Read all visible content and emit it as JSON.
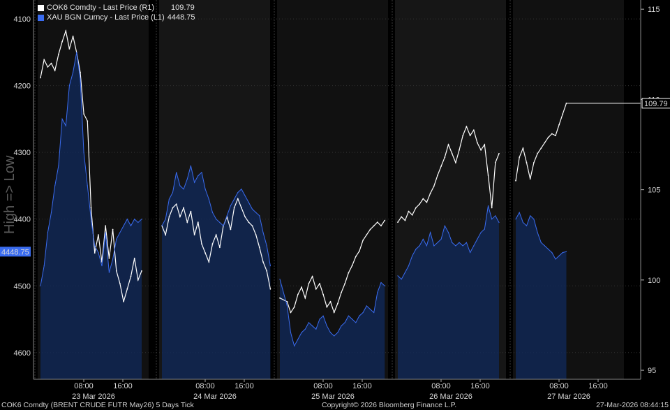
{
  "legend": [
    {
      "label": "COK6 Comdty - Last Price (R1)",
      "value": "109.79",
      "color": "#ffffff"
    },
    {
      "label": "XAU BGN Curncy - Last Price (L1)",
      "value": "4448.75",
      "color": "#3a6cf0"
    }
  ],
  "y_axis_label": "High => Low",
  "footer": {
    "left": "COK6 Comdty (BRENT CRUDE FUTR  May26) 5 Days Tick",
    "center": "Copyright© 2026 Bloomberg Finance L.P.",
    "right": "27-Mar-2026 08:44:15"
  },
  "chart_data": {
    "type": "line",
    "days": [
      "23 Mar 2026",
      "24 Mar 2026",
      "25 Mar 2026",
      "26 Mar 2026",
      "27 Mar 2026"
    ],
    "time_ticks": [
      "08:00",
      "16:00"
    ],
    "left_axis": {
      "ticks": [
        4100,
        4200,
        4300,
        4400,
        4500,
        4600
      ],
      "range": [
        4080,
        4640
      ],
      "inverted": true,
      "current_label": "4448.75"
    },
    "right_axis": {
      "ticks": [
        95,
        100,
        105,
        110,
        115
      ],
      "range": [
        94.5,
        115.2
      ],
      "current_label": "109.79"
    },
    "series": [
      {
        "name": "COK6 Comdty - Last Price (R1)",
        "axis": "right",
        "color": "#ffffff",
        "points": [
          [
            0.0,
            111.2
          ],
          [
            0.02,
            112.2
          ],
          [
            0.04,
            111.8
          ],
          [
            0.06,
            112.0
          ],
          [
            0.08,
            111.6
          ],
          [
            0.1,
            112.5
          ],
          [
            0.12,
            113.2
          ],
          [
            0.14,
            113.8
          ],
          [
            0.16,
            112.8
          ],
          [
            0.18,
            113.5
          ],
          [
            0.2,
            112.6
          ],
          [
            0.22,
            111.5
          ],
          [
            0.24,
            109.2
          ],
          [
            0.26,
            108.8
          ],
          [
            0.28,
            104.0
          ],
          [
            0.3,
            101.5
          ],
          [
            0.32,
            102.5
          ],
          [
            0.34,
            101.0
          ],
          [
            0.36,
            103.0
          ],
          [
            0.38,
            101.2
          ],
          [
            0.4,
            102.8
          ],
          [
            0.42,
            100.5
          ],
          [
            0.44,
            99.8
          ],
          [
            0.46,
            98.8
          ],
          [
            0.48,
            99.5
          ],
          [
            0.5,
            100.2
          ],
          [
            0.52,
            101.2
          ],
          [
            0.54,
            100.0
          ],
          [
            0.56,
            100.5
          ],
          [
            1.0,
            103.0
          ],
          [
            1.02,
            102.5
          ],
          [
            1.04,
            103.5
          ],
          [
            1.06,
            104.0
          ],
          [
            1.08,
            104.2
          ],
          [
            1.1,
            103.5
          ],
          [
            1.12,
            104.0
          ],
          [
            1.14,
            103.2
          ],
          [
            1.16,
            103.8
          ],
          [
            1.18,
            102.5
          ],
          [
            1.2,
            103.2
          ],
          [
            1.22,
            102.0
          ],
          [
            1.24,
            101.5
          ],
          [
            1.26,
            101.0
          ],
          [
            1.28,
            102.0
          ],
          [
            1.3,
            102.5
          ],
          [
            1.32,
            101.8
          ],
          [
            1.34,
            103.0
          ],
          [
            1.36,
            103.5
          ],
          [
            1.38,
            102.8
          ],
          [
            1.4,
            104.0
          ],
          [
            1.42,
            104.5
          ],
          [
            1.44,
            104.0
          ],
          [
            1.46,
            103.5
          ],
          [
            1.48,
            103.2
          ],
          [
            1.5,
            103.0
          ],
          [
            1.52,
            102.5
          ],
          [
            1.54,
            101.8
          ],
          [
            1.56,
            101.0
          ],
          [
            1.58,
            100.5
          ],
          [
            1.6,
            99.5
          ],
          [
            2.0,
            99.0
          ],
          [
            2.04,
            98.8
          ],
          [
            2.06,
            98.2
          ],
          [
            2.08,
            98.5
          ],
          [
            2.1,
            99.2
          ],
          [
            2.12,
            99.6
          ],
          [
            2.14,
            99.0
          ],
          [
            2.16,
            99.8
          ],
          [
            2.18,
            100.2
          ],
          [
            2.2,
            99.5
          ],
          [
            2.22,
            99.8
          ],
          [
            2.24,
            99.2
          ],
          [
            2.26,
            98.5
          ],
          [
            2.28,
            98.8
          ],
          [
            2.3,
            98.2
          ],
          [
            2.32,
            98.7
          ],
          [
            2.34,
            99.3
          ],
          [
            2.36,
            99.8
          ],
          [
            2.38,
            100.4
          ],
          [
            2.4,
            100.8
          ],
          [
            2.42,
            101.3
          ],
          [
            2.44,
            101.6
          ],
          [
            2.46,
            102.2
          ],
          [
            2.48,
            102.5
          ],
          [
            2.5,
            102.8
          ],
          [
            2.52,
            103.0
          ],
          [
            2.54,
            103.2
          ],
          [
            2.56,
            103.0
          ],
          [
            2.58,
            103.3
          ],
          [
            3.0,
            103.2
          ],
          [
            3.02,
            103.5
          ],
          [
            3.04,
            103.3
          ],
          [
            3.06,
            103.8
          ],
          [
            3.08,
            103.6
          ],
          [
            3.1,
            104.0
          ],
          [
            3.12,
            104.2
          ],
          [
            3.14,
            104.5
          ],
          [
            3.16,
            104.3
          ],
          [
            3.18,
            104.8
          ],
          [
            3.2,
            105.2
          ],
          [
            3.22,
            105.8
          ],
          [
            3.24,
            106.3
          ],
          [
            3.26,
            106.8
          ],
          [
            3.28,
            107.5
          ],
          [
            3.3,
            107.0
          ],
          [
            3.32,
            106.5
          ],
          [
            3.34,
            107.2
          ],
          [
            3.36,
            108.0
          ],
          [
            3.38,
            108.5
          ],
          [
            3.4,
            108.0
          ],
          [
            3.42,
            108.3
          ],
          [
            3.44,
            107.6
          ],
          [
            3.46,
            107.2
          ],
          [
            3.48,
            107.5
          ],
          [
            3.5,
            105.8
          ],
          [
            3.52,
            104.0
          ],
          [
            3.54,
            106.5
          ],
          [
            3.56,
            107.0
          ],
          [
            4.0,
            105.5
          ],
          [
            4.02,
            106.8
          ],
          [
            4.04,
            107.3
          ],
          [
            4.06,
            106.5
          ],
          [
            4.08,
            105.6
          ],
          [
            4.1,
            106.5
          ],
          [
            4.12,
            107.0
          ],
          [
            4.14,
            107.3
          ],
          [
            4.16,
            107.6
          ],
          [
            4.18,
            107.9
          ],
          [
            4.2,
            108.1
          ],
          [
            4.22,
            108.0
          ],
          [
            4.24,
            108.6
          ],
          [
            4.26,
            109.2
          ],
          [
            4.28,
            109.79
          ]
        ]
      },
      {
        "name": "XAU BGN Curncy - Last Price (L1)",
        "axis": "left",
        "color": "#3a6cf0",
        "points": [
          [
            0.0,
            4500
          ],
          [
            0.02,
            4470
          ],
          [
            0.04,
            4420
          ],
          [
            0.06,
            4390
          ],
          [
            0.08,
            4350
          ],
          [
            0.1,
            4320
          ],
          [
            0.12,
            4250
          ],
          [
            0.14,
            4260
          ],
          [
            0.16,
            4200
          ],
          [
            0.18,
            4180
          ],
          [
            0.2,
            4150
          ],
          [
            0.22,
            4190
          ],
          [
            0.24,
            4300
          ],
          [
            0.26,
            4350
          ],
          [
            0.28,
            4400
          ],
          [
            0.3,
            4440
          ],
          [
            0.32,
            4450
          ],
          [
            0.34,
            4470
          ],
          [
            0.36,
            4420
          ],
          [
            0.38,
            4480
          ],
          [
            0.4,
            4460
          ],
          [
            0.42,
            4430
          ],
          [
            0.44,
            4420
          ],
          [
            0.46,
            4410
          ],
          [
            0.48,
            4400
          ],
          [
            0.5,
            4410
          ],
          [
            0.52,
            4400
          ],
          [
            0.54,
            4405
          ],
          [
            0.56,
            4400
          ],
          [
            1.0,
            4410
          ],
          [
            1.02,
            4400
          ],
          [
            1.04,
            4370
          ],
          [
            1.06,
            4360
          ],
          [
            1.08,
            4330
          ],
          [
            1.1,
            4350
          ],
          [
            1.12,
            4355
          ],
          [
            1.14,
            4340
          ],
          [
            1.16,
            4320
          ],
          [
            1.18,
            4345
          ],
          [
            1.2,
            4335
          ],
          [
            1.22,
            4330
          ],
          [
            1.24,
            4355
          ],
          [
            1.26,
            4370
          ],
          [
            1.28,
            4390
          ],
          [
            1.3,
            4400
          ],
          [
            1.32,
            4405
          ],
          [
            1.34,
            4410
          ],
          [
            1.36,
            4395
          ],
          [
            1.38,
            4380
          ],
          [
            1.4,
            4370
          ],
          [
            1.42,
            4360
          ],
          [
            1.44,
            4355
          ],
          [
            1.46,
            4365
          ],
          [
            1.48,
            4375
          ],
          [
            1.5,
            4385
          ],
          [
            1.52,
            4390
          ],
          [
            1.54,
            4395
          ],
          [
            1.56,
            4420
          ],
          [
            1.58,
            4440
          ],
          [
            1.6,
            4470
          ],
          [
            2.0,
            4490
          ],
          [
            2.04,
            4530
          ],
          [
            2.06,
            4570
          ],
          [
            2.08,
            4590
          ],
          [
            2.1,
            4580
          ],
          [
            2.12,
            4570
          ],
          [
            2.14,
            4565
          ],
          [
            2.16,
            4555
          ],
          [
            2.18,
            4560
          ],
          [
            2.2,
            4565
          ],
          [
            2.22,
            4550
          ],
          [
            2.24,
            4545
          ],
          [
            2.26,
            4560
          ],
          [
            2.28,
            4570
          ],
          [
            2.3,
            4575
          ],
          [
            2.32,
            4570
          ],
          [
            2.34,
            4560
          ],
          [
            2.36,
            4555
          ],
          [
            2.38,
            4545
          ],
          [
            2.4,
            4550
          ],
          [
            2.42,
            4555
          ],
          [
            2.44,
            4545
          ],
          [
            2.46,
            4540
          ],
          [
            2.48,
            4530
          ],
          [
            2.5,
            4535
          ],
          [
            2.52,
            4540
          ],
          [
            2.54,
            4510
          ],
          [
            2.56,
            4495
          ],
          [
            2.58,
            4500
          ],
          [
            3.0,
            4485
          ],
          [
            3.02,
            4490
          ],
          [
            3.04,
            4480
          ],
          [
            3.06,
            4470
          ],
          [
            3.08,
            4455
          ],
          [
            3.1,
            4445
          ],
          [
            3.12,
            4440
          ],
          [
            3.14,
            4430
          ],
          [
            3.16,
            4440
          ],
          [
            3.18,
            4420
          ],
          [
            3.2,
            4440
          ],
          [
            3.22,
            4435
          ],
          [
            3.24,
            4430
          ],
          [
            3.26,
            4410
          ],
          [
            3.28,
            4420
          ],
          [
            3.3,
            4435
          ],
          [
            3.32,
            4440
          ],
          [
            3.34,
            4435
          ],
          [
            3.36,
            4440
          ],
          [
            3.38,
            4435
          ],
          [
            3.4,
            4450
          ],
          [
            3.42,
            4440
          ],
          [
            3.44,
            4430
          ],
          [
            3.46,
            4420
          ],
          [
            3.48,
            4415
          ],
          [
            3.5,
            4380
          ],
          [
            3.52,
            4400
          ],
          [
            3.54,
            4395
          ],
          [
            3.56,
            4405
          ],
          [
            4.0,
            4400
          ],
          [
            4.02,
            4390
          ],
          [
            4.04,
            4405
          ],
          [
            4.06,
            4410
          ],
          [
            4.08,
            4395
          ],
          [
            4.1,
            4400
          ],
          [
            4.12,
            4420
          ],
          [
            4.14,
            4435
          ],
          [
            4.16,
            4440
          ],
          [
            4.18,
            4445
          ],
          [
            4.2,
            4450
          ],
          [
            4.22,
            4460
          ],
          [
            4.24,
            4455
          ],
          [
            4.26,
            4450
          ],
          [
            4.28,
            4448.75
          ]
        ]
      }
    ],
    "grid": true,
    "legend_position": "top-left"
  }
}
